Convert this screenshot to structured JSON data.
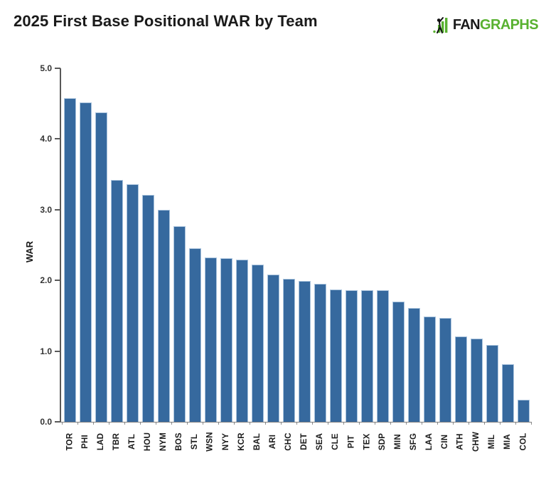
{
  "header": {
    "title": "2025 First Base Positional WAR by Team",
    "logo": {
      "fan": "FAN",
      "graphs": "GRAPHS",
      "green": "#58B130",
      "black": "#1A1A1A"
    }
  },
  "chart_data": {
    "type": "bar",
    "title": "2025 First Base Positional WAR by Team",
    "xlabel": "",
    "ylabel": "WAR",
    "ylim": [
      0,
      5
    ],
    "ytick_step": 1,
    "ytick_labels": [
      "0.0",
      "1.0",
      "2.0",
      "3.0",
      "4.0",
      "5.0"
    ],
    "grid": false,
    "legend_position": "none",
    "bar_color": "#36699E",
    "bar_border_color": "#A9C3DD",
    "categories": [
      "TOR",
      "PHI",
      "LAD",
      "TBR",
      "ATL",
      "HOU",
      "NYM",
      "BOS",
      "STL",
      "WSN",
      "NYY",
      "KCR",
      "BAL",
      "ARI",
      "CHC",
      "DET",
      "SEA",
      "CLE",
      "PIT",
      "TEX",
      "SDP",
      "MIN",
      "SFG",
      "LAA",
      "CIN",
      "ATH",
      "CHW",
      "MIL",
      "MIA",
      "COL"
    ],
    "values": [
      4.58,
      4.52,
      4.38,
      3.42,
      3.36,
      3.21,
      3.0,
      2.77,
      2.45,
      2.32,
      2.31,
      2.29,
      2.22,
      2.08,
      2.02,
      1.99,
      1.95,
      1.87,
      1.86,
      1.86,
      1.86,
      1.7,
      1.61,
      1.49,
      1.47,
      1.21,
      1.18,
      1.09,
      0.81,
      0.31
    ]
  }
}
